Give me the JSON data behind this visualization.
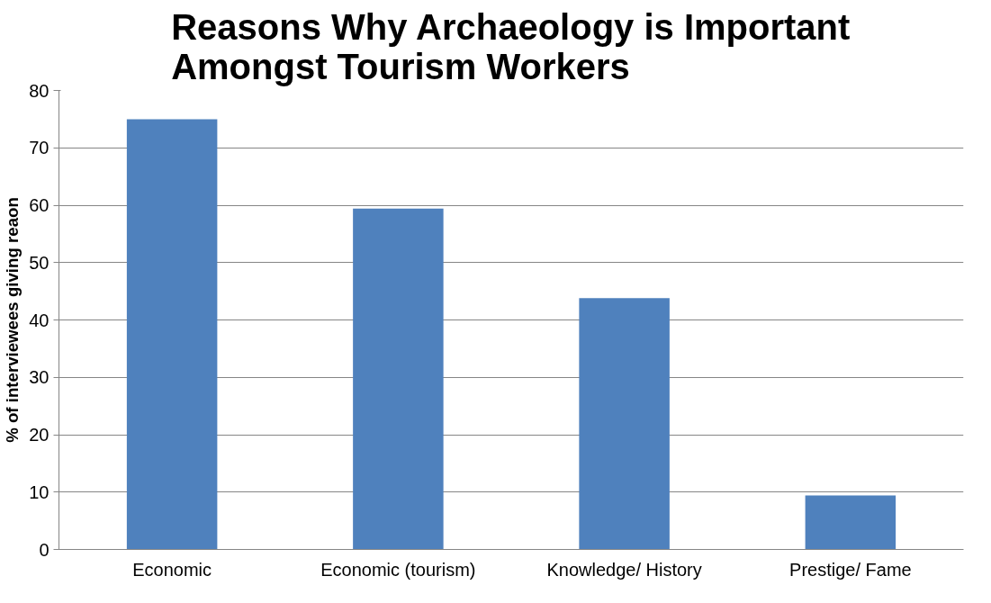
{
  "chart_data": {
    "type": "bar",
    "title": "Reasons Why Archaeology is Important\nAmongst Tourism Workers",
    "ylabel": "% of interviewees giving reaon",
    "categories": [
      "Economic",
      "Economic (tourism)",
      "Knowledge/ History",
      "Prestige/ Fame"
    ],
    "values": [
      75,
      59.4,
      43.8,
      9.4
    ],
    "color": "#4f81bd",
    "ylim": [
      0,
      80
    ],
    "yticks": [
      0,
      10,
      20,
      30,
      40,
      50,
      60,
      70,
      80
    ],
    "grid": "y"
  }
}
